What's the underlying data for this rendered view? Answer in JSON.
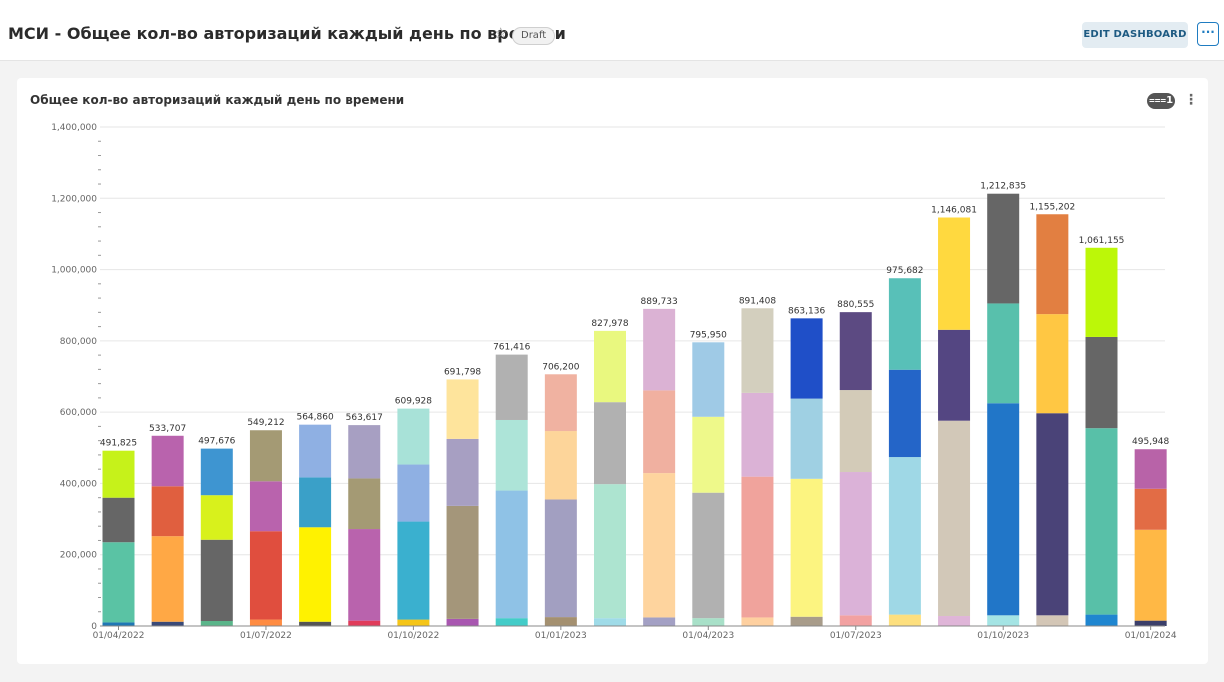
{
  "header": {
    "title": "МСИ - Общее кол-во авторизаций каждый день по времени",
    "badge": "Draft",
    "edit_label": "EDIT DASHBOARD",
    "more_label": "···"
  },
  "card": {
    "filter_count": "1"
  },
  "chart_data": {
    "type": "bar",
    "stacked": true,
    "title": "Общее кол-во авторизаций каждый день по времени",
    "xlabel": "",
    "ylabel": "",
    "ylim": [
      0,
      1400000
    ],
    "y_ticks": [
      0,
      200000,
      400000,
      600000,
      800000,
      1000000,
      1200000,
      1400000
    ],
    "y_tick_labels": [
      "0",
      "200,000",
      "400,000",
      "600,000",
      "800,000",
      "1,000,000",
      "1,200,000",
      "1,400,000"
    ],
    "x_tick_labels": [
      {
        "label": "01/04/2022",
        "index": 0
      },
      {
        "label": "01/07/2022",
        "index": 3
      },
      {
        "label": "01/10/2022",
        "index": 6
      },
      {
        "label": "01/01/2023",
        "index": 9
      },
      {
        "label": "01/04/2023",
        "index": 12
      },
      {
        "label": "01/07/2023",
        "index": 15
      },
      {
        "label": "01/10/2023",
        "index": 18
      },
      {
        "label": "01/01/2024",
        "index": 21
      }
    ],
    "categories": [
      "Apr 2022",
      "May 2022",
      "Jun 2022",
      "Jul 2022",
      "Aug 2022",
      "Sep 2022",
      "Oct 2022",
      "Nov 2022",
      "Dec 2022",
      "Jan 2023",
      "Feb 2023",
      "Mar 2023",
      "Apr 2023",
      "May 2023",
      "Jun 2023",
      "Jul 2023",
      "Aug 2023",
      "Sep 2023",
      "Oct 2023",
      "Nov 2023",
      "Dec 2023",
      "Jan 2024"
    ],
    "totals": [
      491825,
      533707,
      497676,
      549212,
      564860,
      563617,
      609928,
      691798,
      761416,
      706200,
      827978,
      889733,
      795950,
      891408,
      863136,
      880555,
      975682,
      1146081,
      1212835,
      1155202,
      1061155,
      495948
    ],
    "total_labels": [
      "491,825",
      "533,707",
      "497,676",
      "549,212",
      "564,860",
      "563,617",
      "609,928",
      "691,798",
      "761,416",
      "706,200",
      "827,978",
      "889,733",
      "795,950",
      "891,408",
      "863,136",
      "880,555",
      "975,682",
      "1,146,081",
      "1,212,835",
      "1,155,202",
      "1,061,155",
      "495,948"
    ],
    "stacks": [
      {
        "segments": [
          {
            "value": 10000,
            "color": "#1f77b4"
          },
          {
            "value": 225000,
            "color": "#5ac3a4"
          },
          {
            "value": 125000,
            "color": "#666666"
          },
          {
            "value": 131825,
            "color": "#c6f21a"
          }
        ]
      },
      {
        "segments": [
          {
            "value": 12000,
            "color": "#3a4a78"
          },
          {
            "value": 240000,
            "color": "#ffa845"
          },
          {
            "value": 140000,
            "color": "#e05f3f"
          },
          {
            "value": 141707,
            "color": "#b963ad"
          }
        ]
      },
      {
        "segments": [
          {
            "value": 14000,
            "color": "#5ab58a"
          },
          {
            "value": 228000,
            "color": "#666666"
          },
          {
            "value": 125000,
            "color": "#d8f11c"
          },
          {
            "value": 130676,
            "color": "#3e95d1"
          }
        ]
      },
      {
        "segments": [
          {
            "value": 18000,
            "color": "#ff8c42"
          },
          {
            "value": 248000,
            "color": "#e04e3e"
          },
          {
            "value": 140000,
            "color": "#b963ad"
          },
          {
            "value": 143212,
            "color": "#a49a74"
          }
        ]
      },
      {
        "segments": [
          {
            "value": 12000,
            "color": "#555555"
          },
          {
            "value": 265000,
            "color": "#fff200"
          },
          {
            "value": 140000,
            "color": "#3aa0c8"
          },
          {
            "value": 147860,
            "color": "#8fb0e3"
          }
        ]
      },
      {
        "segments": [
          {
            "value": 15000,
            "color": "#e03c5a"
          },
          {
            "value": 257000,
            "color": "#b963ad"
          },
          {
            "value": 142000,
            "color": "#a49a74"
          },
          {
            "value": 149617,
            "color": "#a79fc2"
          }
        ]
      },
      {
        "segments": [
          {
            "value": 18000,
            "color": "#f5c518"
          },
          {
            "value": 275000,
            "color": "#3ab0cf"
          },
          {
            "value": 160000,
            "color": "#8fb0e3"
          },
          {
            "value": 156928,
            "color": "#a8e2d8"
          }
        ]
      },
      {
        "segments": [
          {
            "value": 20000,
            "color": "#a857b0"
          },
          {
            "value": 317000,
            "color": "#a4967a"
          },
          {
            "value": 188000,
            "color": "#a79fc2"
          },
          {
            "value": 166798,
            "color": "#fee49c"
          }
        ]
      },
      {
        "segments": [
          {
            "value": 22000,
            "color": "#43ccc8"
          },
          {
            "value": 358000,
            "color": "#8fc2e6"
          },
          {
            "value": 198000,
            "color": "#ade4d8"
          },
          {
            "value": 183416,
            "color": "#b1b1b1"
          }
        ]
      },
      {
        "segments": [
          {
            "value": 25000,
            "color": "#a49070"
          },
          {
            "value": 330000,
            "color": "#a29fc1"
          },
          {
            "value": 192000,
            "color": "#fdd59a"
          },
          {
            "value": 159200,
            "color": "#f0b2a1"
          }
        ]
      },
      {
        "segments": [
          {
            "value": 22000,
            "color": "#9fdbe8"
          },
          {
            "value": 376000,
            "color": "#ade4d0"
          },
          {
            "value": 230000,
            "color": "#b1b1b1"
          },
          {
            "value": 199978,
            "color": "#e9f87f"
          }
        ]
      },
      {
        "segments": [
          {
            "value": 24000,
            "color": "#a3a0c4"
          },
          {
            "value": 405000,
            "color": "#fed49e"
          },
          {
            "value": 232000,
            "color": "#f0b0a0"
          },
          {
            "value": 228733,
            "color": "#dbb2d4"
          }
        ]
      },
      {
        "segments": [
          {
            "value": 22000,
            "color": "#a8e0c8"
          },
          {
            "value": 352000,
            "color": "#b1b1b1"
          },
          {
            "value": 213000,
            "color": "#eef98a"
          },
          {
            "value": 208950,
            "color": "#9fcae6"
          }
        ]
      },
      {
        "segments": [
          {
            "value": 24000,
            "color": "#fed0a0"
          },
          {
            "value": 395000,
            "color": "#f0a39c"
          },
          {
            "value": 235000,
            "color": "#dbb2d6"
          },
          {
            "value": 237408,
            "color": "#d3cfbe"
          }
        ]
      },
      {
        "segments": [
          {
            "value": 26000,
            "color": "#a89c8a"
          },
          {
            "value": 387000,
            "color": "#fcf480"
          },
          {
            "value": 225000,
            "color": "#9fd0e3"
          },
          {
            "value": 225136,
            "color": "#1f4fc8"
          }
        ]
      },
      {
        "segments": [
          {
            "value": 30000,
            "color": "#f2a1a1"
          },
          {
            "value": 402000,
            "color": "#dbb2d8"
          },
          {
            "value": 230000,
            "color": "#d3cbb8"
          },
          {
            "value": 218555,
            "color": "#5c4a82"
          }
        ]
      },
      {
        "segments": [
          {
            "value": 32000,
            "color": "#fddf7e"
          },
          {
            "value": 442000,
            "color": "#9fd8e6"
          },
          {
            "value": 245000,
            "color": "#2465c8"
          },
          {
            "value": 256682,
            "color": "#58c0b8"
          }
        ]
      },
      {
        "segments": [
          {
            "value": 28000,
            "color": "#dfb5d8"
          },
          {
            "value": 548000,
            "color": "#d2c8b8"
          },
          {
            "value": 255000,
            "color": "#544682"
          },
          {
            "value": 315081,
            "color": "#ffd93f"
          }
        ]
      },
      {
        "segments": [
          {
            "value": 30000,
            "color": "#a4e4e4"
          },
          {
            "value": 595000,
            "color": "#2176c8"
          },
          {
            "value": 280000,
            "color": "#58c0ac"
          },
          {
            "value": 307835,
            "color": "#666666"
          }
        ]
      },
      {
        "segments": [
          {
            "value": 30000,
            "color": "#d3c6b6"
          },
          {
            "value": 567000,
            "color": "#4a4378"
          },
          {
            "value": 278000,
            "color": "#ffc743"
          },
          {
            "value": 280202,
            "color": "#e27f41"
          }
        ]
      },
      {
        "segments": [
          {
            "value": 32000,
            "color": "#1f86d0"
          },
          {
            "value": 523000,
            "color": "#58c0a8"
          },
          {
            "value": 256000,
            "color": "#666666"
          },
          {
            "value": 250155,
            "color": "#bcf708"
          }
        ]
      },
      {
        "segments": [
          {
            "value": 15000,
            "color": "#3b3f6a"
          },
          {
            "value": 255000,
            "color": "#ffb845"
          },
          {
            "value": 115000,
            "color": "#e26c45"
          },
          {
            "value": 110948,
            "color": "#b863a8"
          }
        ]
      }
    ]
  }
}
